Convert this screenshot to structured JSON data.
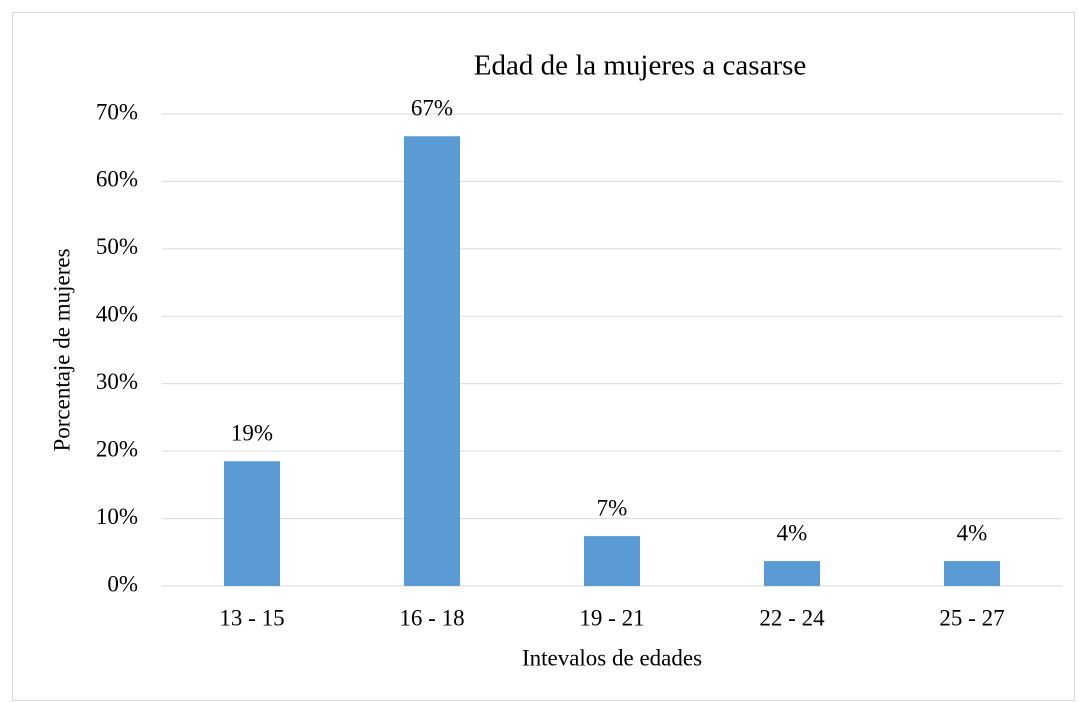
{
  "chart_data": {
    "type": "bar",
    "title": "Edad de la mujeres a casarse",
    "x_label": "Intevalos de edades",
    "y_label": "Porcentaje de mujeres",
    "categories": [
      "13 - 15",
      "16 - 18",
      "19 - 21",
      "22 - 24",
      "25 - 27"
    ],
    "values": [
      18.5,
      66.7,
      7.4,
      3.7,
      3.7
    ],
    "value_labels": [
      "19%",
      "67%",
      "7%",
      "4%",
      "4%"
    ],
    "color": "#5b9bd5",
    "ylim": [
      0,
      70
    ],
    "yticks": [
      {
        "value": 0,
        "label": "0%"
      },
      {
        "value": 10,
        "label": "10%"
      },
      {
        "value": 20,
        "label": "20%"
      },
      {
        "value": 30,
        "label": "30%"
      },
      {
        "value": 40,
        "label": "40%"
      },
      {
        "value": 50,
        "label": "50%"
      },
      {
        "value": 60,
        "label": "60%"
      },
      {
        "value": 70,
        "label": "70%"
      }
    ],
    "grid": true
  }
}
